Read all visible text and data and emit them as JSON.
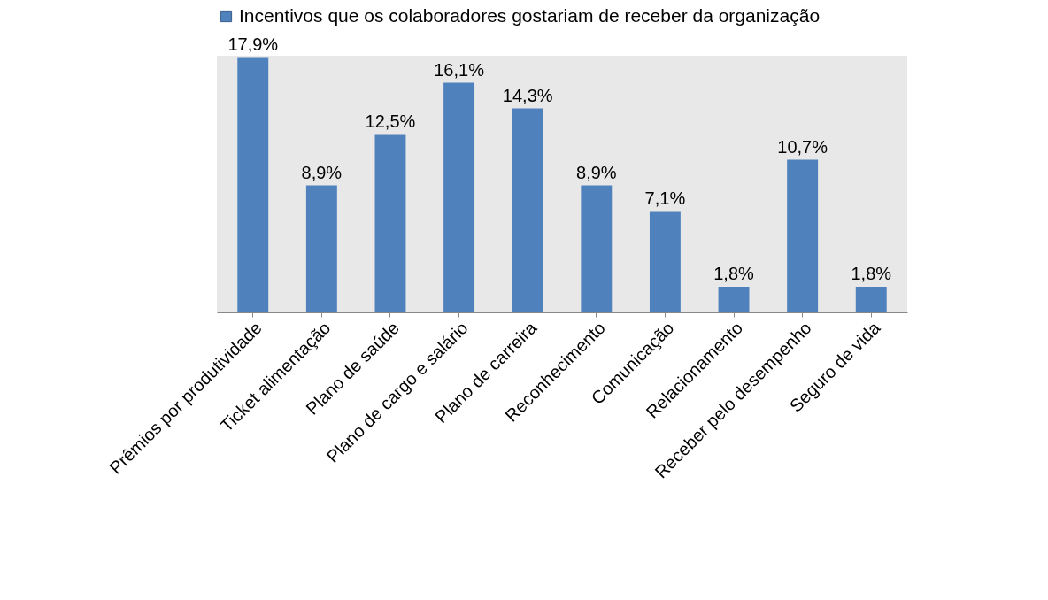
{
  "chart_data": {
    "type": "bar",
    "categories": [
      "Prêmios por produtividade",
      "Ticket alimentação",
      "Plano de saúde",
      "Plano de cargo e salário",
      "Plano de carreira",
      "Reconhecimento",
      "Comunicação",
      "Relacionamento",
      "Receber pelo desempenho",
      "Seguro de vida"
    ],
    "series": [
      {
        "name": "Incentivos que os colaboradores gostariam de receber da organização",
        "color": "#4f81bd",
        "values": [
          17.9,
          8.9,
          12.5,
          16.1,
          14.3,
          8.9,
          7.1,
          1.8,
          10.7,
          1.8
        ],
        "value_labels": [
          "17,9%",
          "8,9%",
          "12,5%",
          "16,1%",
          "14,3%",
          "8,9%",
          "7,1%",
          "1,8%",
          "10,7%",
          "1,8%"
        ]
      }
    ],
    "legend": "top",
    "grid": false
  }
}
